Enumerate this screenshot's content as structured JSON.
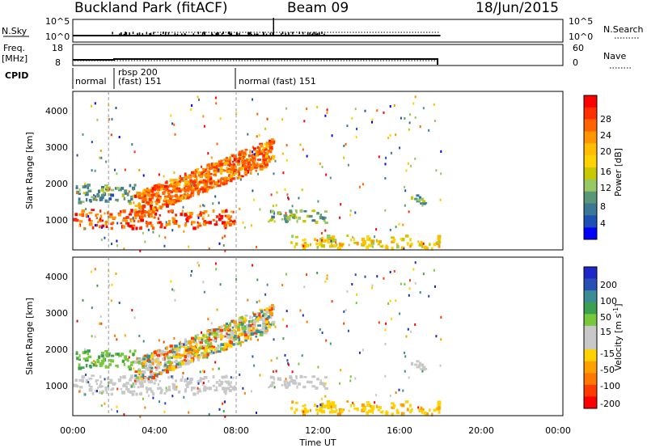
{
  "header": {
    "station": "Buckland Park (fitACF)",
    "beam": "Beam 09",
    "date": "18/Jun/2015"
  },
  "panels": {
    "nsky_label": "N.Sky",
    "nsky_ticks": [
      "10^5",
      "10^0"
    ],
    "nsky_right_ticks": [
      "10^5",
      "10^0"
    ],
    "nsearch_label": "N.Search",
    "freq_label_1": "Freq.",
    "freq_label_2": "[MHz]",
    "freq_ticks": [
      "18",
      "8"
    ],
    "nave_label": "Nave",
    "nave_ticks": [
      "60",
      "0"
    ],
    "cpid_label": "CPID",
    "cpid_segments": [
      {
        "text_top": "",
        "text": "normal",
        "start": 0.0,
        "end": 1.75
      },
      {
        "text_top": "rbsp 200",
        "text": "(fast)  151",
        "start": 1.75,
        "end": 8.0
      },
      {
        "text_top": "",
        "text": "normal (fast)  151",
        "start": 8.0,
        "end": 18.0
      }
    ]
  },
  "axes": {
    "xlabel": "Time UT",
    "x_ticks": [
      "00:00",
      "04:00",
      "08:00",
      "12:00",
      "16:00",
      "20:00",
      "00:00"
    ],
    "ylabel": "Slant Range [km]",
    "y_ticks": [
      "1000",
      "2000",
      "3000",
      "4000"
    ]
  },
  "colorbars": {
    "power_label": "Power [dB]",
    "power_ticks": [
      "28",
      "24",
      "20",
      "16",
      "12",
      "8",
      "4"
    ],
    "power_colors": [
      "#ff0000",
      "#ff3000",
      "#ff6400",
      "#ff9600",
      "#ffbe00",
      "#ffd200",
      "#c8c800",
      "#96c864",
      "#5a9678",
      "#3c7896",
      "#1e50b4",
      "#0000ff"
    ],
    "velocity_label": "Velocity [m s",
    "velocity_label_sup": "-1",
    "velocity_label_end": "]",
    "velocity_ticks": [
      "200",
      "100",
      "50",
      "15",
      "-15",
      "-50",
      "-100",
      "-200"
    ],
    "velocity_colors": [
      "#1e28c8",
      "#2850b4",
      "#3c8c96",
      "#3ca050",
      "#78c83c",
      "#c8c8c8",
      "#c8c8c8",
      "#ffd200",
      "#ffa000",
      "#ff7800",
      "#ff3c00",
      "#ff0000"
    ]
  },
  "chart_data": {
    "type": "heatmap",
    "title": "Buckland Park (fitACF)  Beam 09  18/Jun/2015",
    "xlabel": "Time UT",
    "ylabel": "Slant Range [km]",
    "xlim": [
      0,
      24
    ],
    "ylim": [
      180,
      4500
    ],
    "x_unit": "hours UT",
    "panels": [
      "Power [dB]",
      "Velocity [m s-1]"
    ],
    "data_end_hour": 18.0,
    "dashed_time_markers": [
      1.75,
      8.0
    ],
    "echo_regions": [
      {
        "name": "near-range band",
        "t_start": 0.0,
        "t_end": 8.0,
        "r_min": 800,
        "r_max": 1300,
        "power_db": 26,
        "velocity": "~0"
      },
      {
        "name": "ascending arc",
        "t_start": 3.0,
        "t_end": 9.8,
        "r_min": 1300,
        "r_max": 3300,
        "power_db": 24,
        "velocity": "mixed -50 to 50"
      },
      {
        "name": "early upper band",
        "t_start": 0.0,
        "t_end": 3.0,
        "r_min": 1500,
        "r_max": 2000,
        "power_db": 8,
        "velocity": "15 to 50"
      },
      {
        "name": "post-midday band",
        "t_start": 9.5,
        "t_end": 12.5,
        "r_min": 950,
        "r_max": 1300,
        "power_db": 10,
        "velocity": "-15 to 15"
      },
      {
        "name": "low range layer",
        "t_start": 10.5,
        "t_end": 18.0,
        "r_min": 250,
        "r_max": 600,
        "power_db": 16,
        "velocity": "-50 to -15"
      },
      {
        "name": "isolated patch",
        "t_start": 16.5,
        "t_end": 17.3,
        "r_min": 1400,
        "r_max": 1700,
        "power_db": 10,
        "velocity": "-15 to 15"
      }
    ],
    "power_colorbar": {
      "ticks": [
        4,
        8,
        12,
        16,
        20,
        24,
        28
      ],
      "range": [
        0,
        30
      ]
    },
    "velocity_colorbar": {
      "ticks": [
        200,
        100,
        50,
        15,
        -15,
        -50,
        -100,
        -200
      ]
    }
  }
}
